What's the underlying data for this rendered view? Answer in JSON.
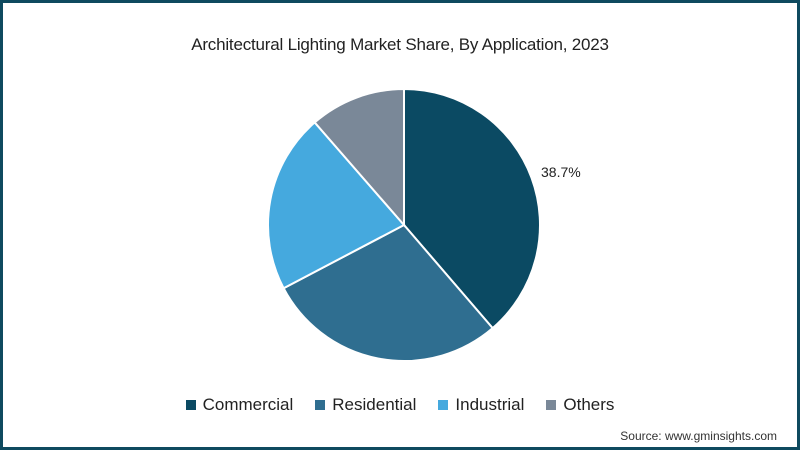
{
  "chart_data": {
    "type": "pie",
    "title": "Architectural Lighting Market Share, By Application, 2023",
    "categories": [
      "Commercial",
      "Residential",
      "Industrial",
      "Others"
    ],
    "values": [
      38.7,
      28.6,
      21.3,
      11.4
    ],
    "unit": "%",
    "colors": [
      "#0b4a63",
      "#2f6e90",
      "#45a9de",
      "#7a8898"
    ],
    "data_labels": [
      {
        "category": "Commercial",
        "text": "38.7%"
      }
    ],
    "start_angle": "12 o'clock, clockwise",
    "legend_position": "bottom"
  },
  "title": "Architectural Lighting Market Share, By Application, 2023",
  "slice_label": "38.7%",
  "legend": [
    {
      "label": "Commercial",
      "color": "#0b4a63"
    },
    {
      "label": "Residential",
      "color": "#2f6e90"
    },
    {
      "label": "Industrial",
      "color": "#45a9de"
    },
    {
      "label": "Others",
      "color": "#7a8898"
    }
  ],
  "source": "Source: www.gminsights.com",
  "frame_color": "#0e4a5f"
}
